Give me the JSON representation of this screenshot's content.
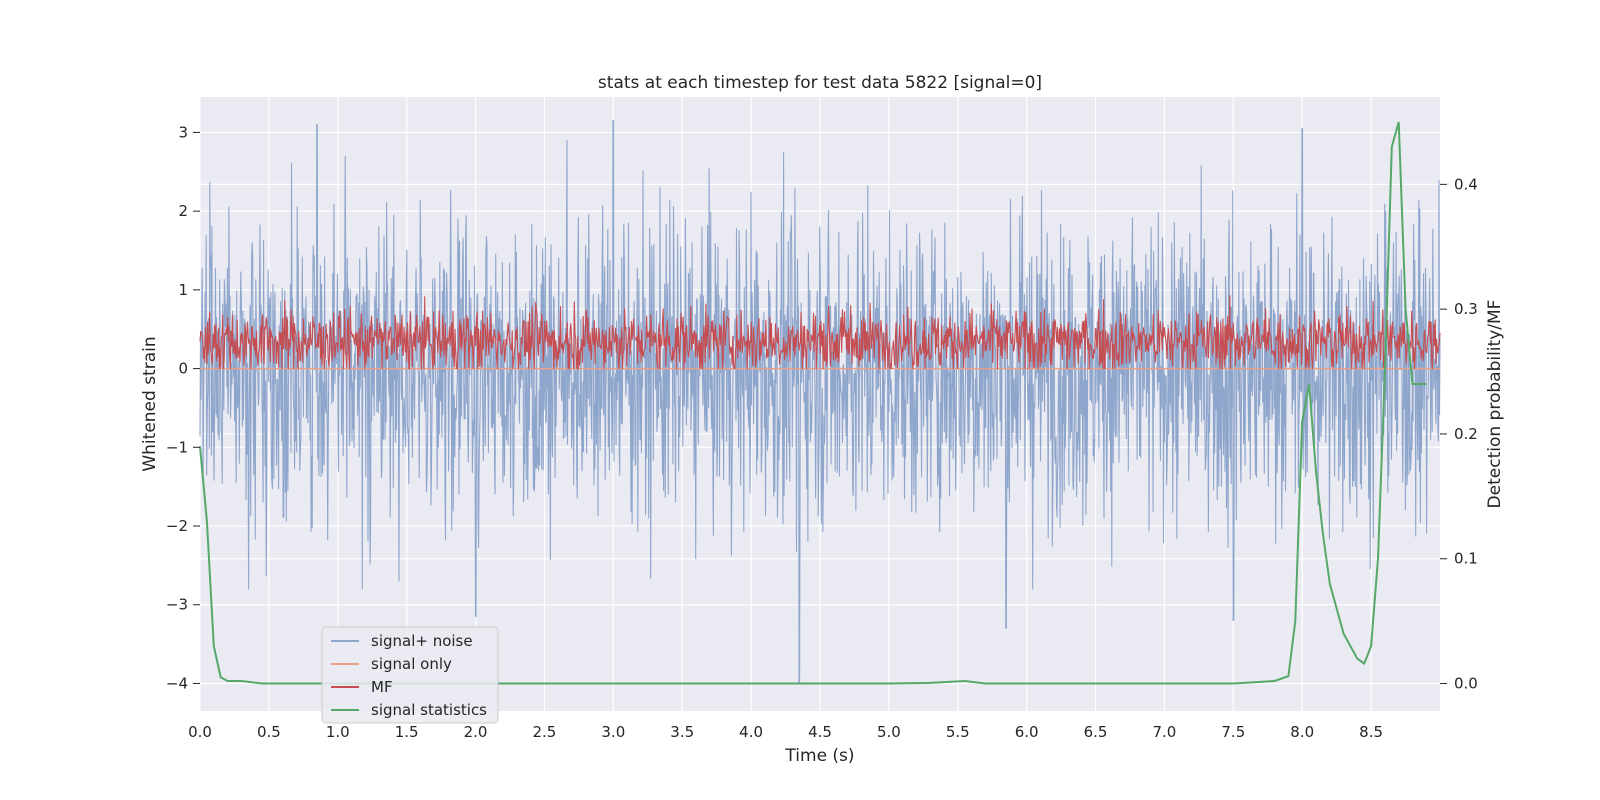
{
  "chart_data": {
    "type": "line",
    "title": "stats at each timestep for test data 5822 [signal=0]",
    "xlabel": "Time (s)",
    "ylabel": "Whitened strain",
    "y2label": "Detection probability/MF",
    "xlim": [
      0.0,
      9.0
    ],
    "ylim": [
      -4.35,
      3.45
    ],
    "y2lim": [
      -0.022,
      0.47
    ],
    "xticks": [
      0.0,
      0.5,
      1.0,
      1.5,
      2.0,
      2.5,
      3.0,
      3.5,
      4.0,
      4.5,
      5.0,
      5.5,
      6.0,
      6.5,
      7.0,
      7.5,
      8.0,
      8.5
    ],
    "xtick_labels": [
      "0.0",
      "0.5",
      "1.0",
      "1.5",
      "2.0",
      "2.5",
      "3.0",
      "3.5",
      "4.0",
      "4.5",
      "5.0",
      "5.5",
      "6.0",
      "6.5",
      "7.0",
      "7.5",
      "8.0",
      "8.5"
    ],
    "yticks": [
      -4,
      -3,
      -2,
      -1,
      0,
      1,
      2,
      3
    ],
    "ytick_labels": [
      "−4",
      "−3",
      "−2",
      "−1",
      "0",
      "1",
      "2",
      "3"
    ],
    "y2ticks": [
      0.0,
      0.1,
      0.2,
      0.3,
      0.4
    ],
    "y2tick_labels": [
      "0.0",
      "0.1",
      "0.2",
      "0.3",
      "0.4"
    ],
    "grid": true,
    "legend_position": "lower-left",
    "series": [
      {
        "name": "signal+ noise",
        "axis": "left",
        "color": "#8fa6cc",
        "description_values": "whitened strain noise, roughly between -3 and 3 with occasional spikes",
        "amplitude_range": [
          -4.0,
          3.2
        ],
        "spikes": [
          [
            0.85,
            3.1
          ],
          [
            3.0,
            3.15
          ],
          [
            4.35,
            -4.0
          ],
          [
            2.0,
            -3.15
          ],
          [
            7.5,
            -3.2
          ],
          [
            5.85,
            -3.3
          ],
          [
            8.0,
            3.05
          ]
        ]
      },
      {
        "name": "signal only",
        "axis": "left",
        "color": "#e8a187",
        "values_constant": 0.0
      },
      {
        "name": "MF",
        "axis": "left",
        "color": "#c44e52",
        "amplitude_range": [
          0.0,
          0.98
        ]
      },
      {
        "name": "signal statistics",
        "axis": "right",
        "color": "#55a868",
        "x": [
          0.0,
          0.05,
          0.1,
          0.15,
          0.2,
          0.3,
          0.45,
          0.6,
          1.0,
          2.0,
          3.0,
          4.0,
          5.0,
          5.3,
          5.55,
          5.7,
          6.0,
          7.0,
          7.5,
          7.8,
          7.9,
          7.95,
          8.0,
          8.05,
          8.1,
          8.15,
          8.2,
          8.3,
          8.4,
          8.45,
          8.5,
          8.55,
          8.6,
          8.65,
          8.7,
          8.75,
          8.8,
          8.85,
          8.9
        ],
        "values": [
          0.19,
          0.13,
          0.03,
          0.005,
          0.002,
          0.002,
          0.0,
          0.0,
          0.0,
          0.0,
          0.0,
          0.0,
          0.0,
          0.0005,
          0.002,
          0.0,
          0.0,
          0.0,
          0.0,
          0.002,
          0.006,
          0.05,
          0.21,
          0.24,
          0.17,
          0.12,
          0.08,
          0.04,
          0.02,
          0.016,
          0.03,
          0.1,
          0.25,
          0.43,
          0.45,
          0.3,
          0.24,
          0.24,
          0.24
        ]
      }
    ]
  }
}
